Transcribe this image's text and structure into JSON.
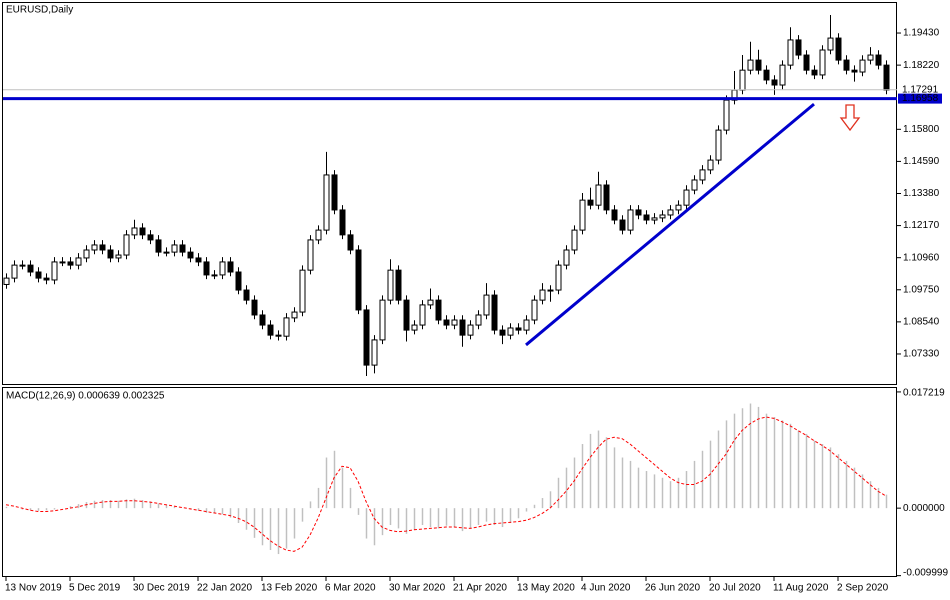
{
  "chart_data": [
    {
      "type": "candlestick",
      "title": "EURUSD,Daily",
      "categories": [
        "13 Nov 2019",
        null,
        null,
        null,
        null,
        null,
        null,
        null,
        "5 Dec 2019",
        null,
        null,
        null,
        null,
        null,
        null,
        null,
        "30 Dec 2019",
        null,
        null,
        null,
        null,
        null,
        null,
        null,
        "22 Jan 2020",
        null,
        null,
        null,
        null,
        null,
        null,
        null,
        "13 Feb 2020",
        null,
        null,
        null,
        null,
        null,
        null,
        null,
        "6 Mar 2020",
        null,
        null,
        null,
        null,
        null,
        null,
        null,
        "30 Mar 2020",
        null,
        null,
        null,
        null,
        null,
        null,
        null,
        "21 Apr 2020",
        null,
        null,
        null,
        null,
        null,
        null,
        null,
        "13 May 2020",
        null,
        null,
        null,
        null,
        null,
        null,
        null,
        "4 Jun 2020",
        null,
        null,
        null,
        null,
        null,
        null,
        null,
        "26 Jun 2020",
        null,
        null,
        null,
        null,
        null,
        null,
        null,
        "20 Jul 2020",
        null,
        null,
        null,
        null,
        null,
        null,
        null,
        "11 Aug 2020",
        null,
        null,
        null,
        null,
        null,
        null,
        null,
        "2 Sep 2020",
        null,
        null,
        null,
        null,
        null,
        null
      ],
      "open": [
        1.0995,
        1.1019,
        1.1068,
        1.1068,
        1.1042,
        1.1019,
        1.1012,
        1.108,
        1.108,
        1.1068,
        1.1095,
        1.1125,
        1.1144,
        1.1125,
        1.1095,
        1.1106,
        1.1182,
        1.1208,
        1.1182,
        1.1163,
        1.1117,
        1.1117,
        1.1144,
        1.1117,
        1.1095,
        1.108,
        1.1031,
        1.1031,
        1.108,
        1.1042,
        1.0974,
        1.0936,
        1.088,
        1.0842,
        1.0804,
        1.08,
        1.0869,
        1.0891,
        1.1049,
        1.1163,
        1.12,
        1.1408,
        1.1276,
        1.1182,
        1.1125,
        1.0899,
        1.0691,
        1.0786,
        1.0936,
        1.1049,
        1.0936,
        1.0823,
        1.0842,
        1.0918,
        1.0936,
        1.0861,
        1.0842,
        1.0861,
        1.0804,
        1.0842,
        1.088,
        1.0955,
        1.0823,
        1.0804,
        1.0831,
        1.0823,
        1.0861,
        1.0936,
        1.0974,
        1.0974,
        1.1068,
        1.1125,
        1.12,
        1.1313,
        1.1294,
        1.137,
        1.1276,
        1.1238,
        1.12,
        1.1276,
        1.1257,
        1.1238,
        1.1246,
        1.1257,
        1.1276,
        1.1294,
        1.1351,
        1.1389,
        1.1427,
        1.1464,
        1.1577,
        1.169,
        1.1728,
        1.1803,
        1.1841,
        1.1803,
        1.1766,
        1.1747,
        1.1822,
        1.1917,
        1.186,
        1.1803,
        1.1785,
        1.1879,
        1.1924,
        1.1841,
        1.1803,
        1.1796,
        1.1841,
        1.186,
        1.1822
      ],
      "high": [
        1.1037,
        1.1086,
        1.1086,
        1.1086,
        1.106,
        1.1037,
        1.1098,
        1.1098,
        1.1098,
        1.1113,
        1.1143,
        1.1162,
        1.1162,
        1.1143,
        1.1124,
        1.12,
        1.1239,
        1.1226,
        1.12,
        1.1181,
        1.1135,
        1.1162,
        1.1162,
        1.1135,
        1.1113,
        1.1098,
        1.1049,
        1.1098,
        1.1098,
        1.106,
        1.0992,
        1.0954,
        1.0898,
        1.086,
        1.0822,
        1.0887,
        1.0909,
        1.1067,
        1.1181,
        1.1218,
        1.1495,
        1.1426,
        1.1294,
        1.12,
        1.1143,
        1.0917,
        1.0804,
        1.0954,
        1.109,
        1.1067,
        1.0954,
        1.086,
        1.0936,
        1.098,
        1.0954,
        1.0879,
        1.0879,
        1.0879,
        1.086,
        1.0898,
        1.1,
        1.0973,
        1.0841,
        1.0849,
        1.0849,
        1.0879,
        1.0954,
        1.1,
        1.0992,
        1.1086,
        1.1143,
        1.1218,
        1.134,
        1.136,
        1.142,
        1.1388,
        1.1294,
        1.1256,
        1.1294,
        1.1294,
        1.1275,
        1.1264,
        1.1275,
        1.1294,
        1.1312,
        1.1369,
        1.1407,
        1.1445,
        1.1482,
        1.1595,
        1.1708,
        1.18,
        1.186,
        1.191,
        1.188,
        1.1821,
        1.1784,
        1.184,
        1.1965,
        1.1935,
        1.1878,
        1.1821,
        1.1897,
        1.2011,
        1.1942,
        1.1859,
        1.1821,
        1.1859,
        1.189,
        1.1878,
        1.184
      ],
      "low": [
        1.0979,
        1.1003,
        1.1052,
        1.1026,
        1.1003,
        1.0996,
        1.0996,
        1.1064,
        1.1052,
        1.1052,
        1.1079,
        1.1109,
        1.1109,
        1.1079,
        1.1079,
        1.109,
        1.1166,
        1.1166,
        1.1147,
        1.1101,
        1.1101,
        1.1101,
        1.1101,
        1.1079,
        1.1064,
        1.1015,
        1.1015,
        1.1015,
        1.1026,
        1.0958,
        1.092,
        1.0864,
        1.0826,
        1.0788,
        1.0784,
        1.0784,
        1.0853,
        1.0875,
        1.1033,
        1.1147,
        1.1184,
        1.126,
        1.1166,
        1.1109,
        1.0883,
        1.065,
        1.066,
        1.077,
        1.092,
        1.092,
        1.078,
        1.0807,
        1.0826,
        1.0902,
        1.0845,
        1.0826,
        1.0826,
        1.076,
        1.0788,
        1.0826,
        1.0864,
        1.0807,
        1.077,
        1.0788,
        1.0807,
        1.0807,
        1.0845,
        1.092,
        1.093,
        1.0958,
        1.1052,
        1.1109,
        1.1184,
        1.1278,
        1.1278,
        1.126,
        1.1222,
        1.1184,
        1.1184,
        1.1241,
        1.1222,
        1.1222,
        1.123,
        1.1241,
        1.126,
        1.1278,
        1.1335,
        1.1373,
        1.1411,
        1.1448,
        1.1561,
        1.1674,
        1.1712,
        1.1787,
        1.1787,
        1.175,
        1.171,
        1.1731,
        1.1806,
        1.1844,
        1.1787,
        1.1769,
        1.1769,
        1.1863,
        1.1825,
        1.1787,
        1.176,
        1.178,
        1.1825,
        1.1806,
        1.1712
      ],
      "close": [
        1.1019,
        1.1068,
        1.1068,
        1.1042,
        1.1019,
        1.1012,
        1.108,
        1.108,
        1.1068,
        1.1095,
        1.1125,
        1.1144,
        1.1125,
        1.1095,
        1.1106,
        1.1182,
        1.1208,
        1.1182,
        1.1163,
        1.1117,
        1.1117,
        1.1144,
        1.1117,
        1.1095,
        1.108,
        1.1031,
        1.1031,
        1.108,
        1.1042,
        1.0974,
        1.0936,
        1.088,
        1.0842,
        1.0804,
        1.08,
        1.0869,
        1.0891,
        1.1049,
        1.1163,
        1.12,
        1.1408,
        1.1276,
        1.1182,
        1.1125,
        1.0899,
        1.0691,
        1.0786,
        1.0936,
        1.1049,
        1.0936,
        1.0823,
        1.0842,
        1.0918,
        1.0936,
        1.0861,
        1.0842,
        1.0861,
        1.0804,
        1.0842,
        1.088,
        1.0955,
        1.0823,
        1.0804,
        1.0831,
        1.0823,
        1.0861,
        1.0936,
        1.0974,
        1.0974,
        1.1068,
        1.1125,
        1.12,
        1.1313,
        1.1294,
        1.137,
        1.1276,
        1.1238,
        1.12,
        1.1276,
        1.1257,
        1.1238,
        1.1246,
        1.1257,
        1.1276,
        1.1294,
        1.1351,
        1.1389,
        1.1427,
        1.1464,
        1.1577,
        1.169,
        1.1728,
        1.1803,
        1.1841,
        1.1803,
        1.1766,
        1.1747,
        1.1822,
        1.1917,
        1.186,
        1.1803,
        1.1785,
        1.1879,
        1.1924,
        1.1841,
        1.1803,
        1.1796,
        1.1841,
        1.186,
        1.1822,
        1.1728
      ],
      "up_color": "#ffffff",
      "down_color": "#000000",
      "outline_color": "#000000",
      "ylim": [
        1.0616,
        1.206
      ],
      "yticks": [
        {
          "value": 1.1943,
          "label": "1.19430"
        },
        {
          "value": 1.1822,
          "label": "1.18220"
        },
        {
          "value": 1.158,
          "label": "1.15800"
        },
        {
          "value": 1.1459,
          "label": "1.14590"
        },
        {
          "value": 1.1338,
          "label": "1.13380"
        },
        {
          "value": 1.1217,
          "label": "1.12170"
        },
        {
          "value": 1.1096,
          "label": "1.10960"
        },
        {
          "value": 1.0975,
          "label": "1.09750"
        },
        {
          "value": 1.0854,
          "label": "1.08540"
        },
        {
          "value": 1.0733,
          "label": "1.07330"
        }
      ],
      "hlines": [
        {
          "price": 1.17291,
          "color": "#c0c0c0"
        },
        {
          "price": 1.16958,
          "color": "#0000cc"
        }
      ],
      "trendline": {
        "from": {
          "index": 65,
          "price": 1.0767
        },
        "to": {
          "index": 101,
          "price": 1.1675
        },
        "color": "#0000cc"
      }
    },
    {
      "type": "macd",
      "title": "MACD(12,26,9) 0.000639 0.002325",
      "ylim": [
        -0.0102,
        0.0178
      ],
      "yticks": [
        {
          "value": 0.017219,
          "label": "0.017219"
        },
        {
          "value": 0,
          "label": "0.000000"
        },
        {
          "value": -0.009999,
          "label": "-0.009999"
        }
      ],
      "histogram": {
        "color": "#c0c0c0",
        "values": [
          0.0002,
          0,
          -0.0002,
          -0.0003,
          -0.0004,
          -0.0003,
          -0.0002,
          0,
          0.0003,
          0.0006,
          0.0009,
          0.0011,
          0.0012,
          0.0012,
          0.0011,
          0.0013,
          0.0014,
          0.0012,
          0.001,
          0.0007,
          0.0004,
          0.0002,
          0,
          -0.0002,
          -0.0004,
          -0.0007,
          -0.0008,
          -0.0009,
          -0.0014,
          -0.0022,
          -0.0032,
          -0.0044,
          -0.0055,
          -0.0062,
          -0.0068,
          -0.006,
          -0.0045,
          -0.002,
          0.001,
          0.003,
          0.0075,
          0.0085,
          0.006,
          0.003,
          -0.001,
          -0.0045,
          -0.0055,
          -0.004,
          -0.0025,
          -0.003,
          -0.0038,
          -0.0032,
          -0.0025,
          -0.0028,
          -0.003,
          -0.0026,
          -0.0028,
          -0.0034,
          -0.003,
          -0.0025,
          -0.002,
          -0.0025,
          -0.0028,
          -0.0022,
          -0.0015,
          -0.0005,
          0.0005,
          0.0015,
          0.0025,
          0.0045,
          0.006,
          0.0075,
          0.0095,
          0.011,
          0.0115,
          0.0105,
          0.009,
          0.0075,
          0.007,
          0.006,
          0.0055,
          0.005,
          0.0045,
          0.004,
          0.0045,
          0.0055,
          0.007,
          0.0085,
          0.01,
          0.0115,
          0.013,
          0.014,
          0.0148,
          0.0155,
          0.015,
          0.014,
          0.0135,
          0.013,
          0.0125,
          0.0115,
          0.011,
          0.01,
          0.0095,
          0.009,
          0.008,
          0.007,
          0.006,
          0.005,
          0.004,
          0.003,
          0.002
        ]
      },
      "signal": {
        "color": "#ff0000",
        "values": [
          0.0005,
          0.0003,
          0,
          -0.0003,
          -0.0005,
          -0.0005,
          -0.0004,
          -0.0002,
          0,
          0.0002,
          0.0005,
          0.0007,
          0.0009,
          0.001,
          0.001,
          0.0011,
          0.0011,
          0.001,
          0.0009,
          0.0007,
          0.0005,
          0.0003,
          0.0001,
          -0.0001,
          -0.0003,
          -0.0005,
          -0.0007,
          -0.0009,
          -0.0011,
          -0.0015,
          -0.002,
          -0.0028,
          -0.0038,
          -0.0048,
          -0.0056,
          -0.0062,
          -0.0064,
          -0.0058,
          -0.004,
          -0.0015,
          0.0015,
          0.0045,
          0.0062,
          0.006,
          0.004,
          0.001,
          -0.0015,
          -0.0028,
          -0.0033,
          -0.0035,
          -0.0034,
          -0.0032,
          -0.0031,
          -0.003,
          -0.0029,
          -0.0028,
          -0.0028,
          -0.0029,
          -0.003,
          -0.0028,
          -0.0025,
          -0.0023,
          -0.0022,
          -0.0021,
          -0.002,
          -0.0018,
          -0.0014,
          -0.0008,
          0,
          0.0012,
          0.0025,
          0.004,
          0.0058,
          0.0075,
          0.009,
          0.0102,
          0.0105,
          0.0103,
          0.0095,
          0.0085,
          0.0075,
          0.0065,
          0.0055,
          0.0045,
          0.0038,
          0.0035,
          0.0035,
          0.004,
          0.005,
          0.0065,
          0.008,
          0.01,
          0.0115,
          0.0125,
          0.0132,
          0.0135,
          0.0133,
          0.0128,
          0.0122,
          0.0115,
          0.0108,
          0.01,
          0.0093,
          0.0085,
          0.0075,
          0.0065,
          0.0055,
          0.0045,
          0.0035,
          0.0025,
          0.0018
        ]
      }
    }
  ]
}
